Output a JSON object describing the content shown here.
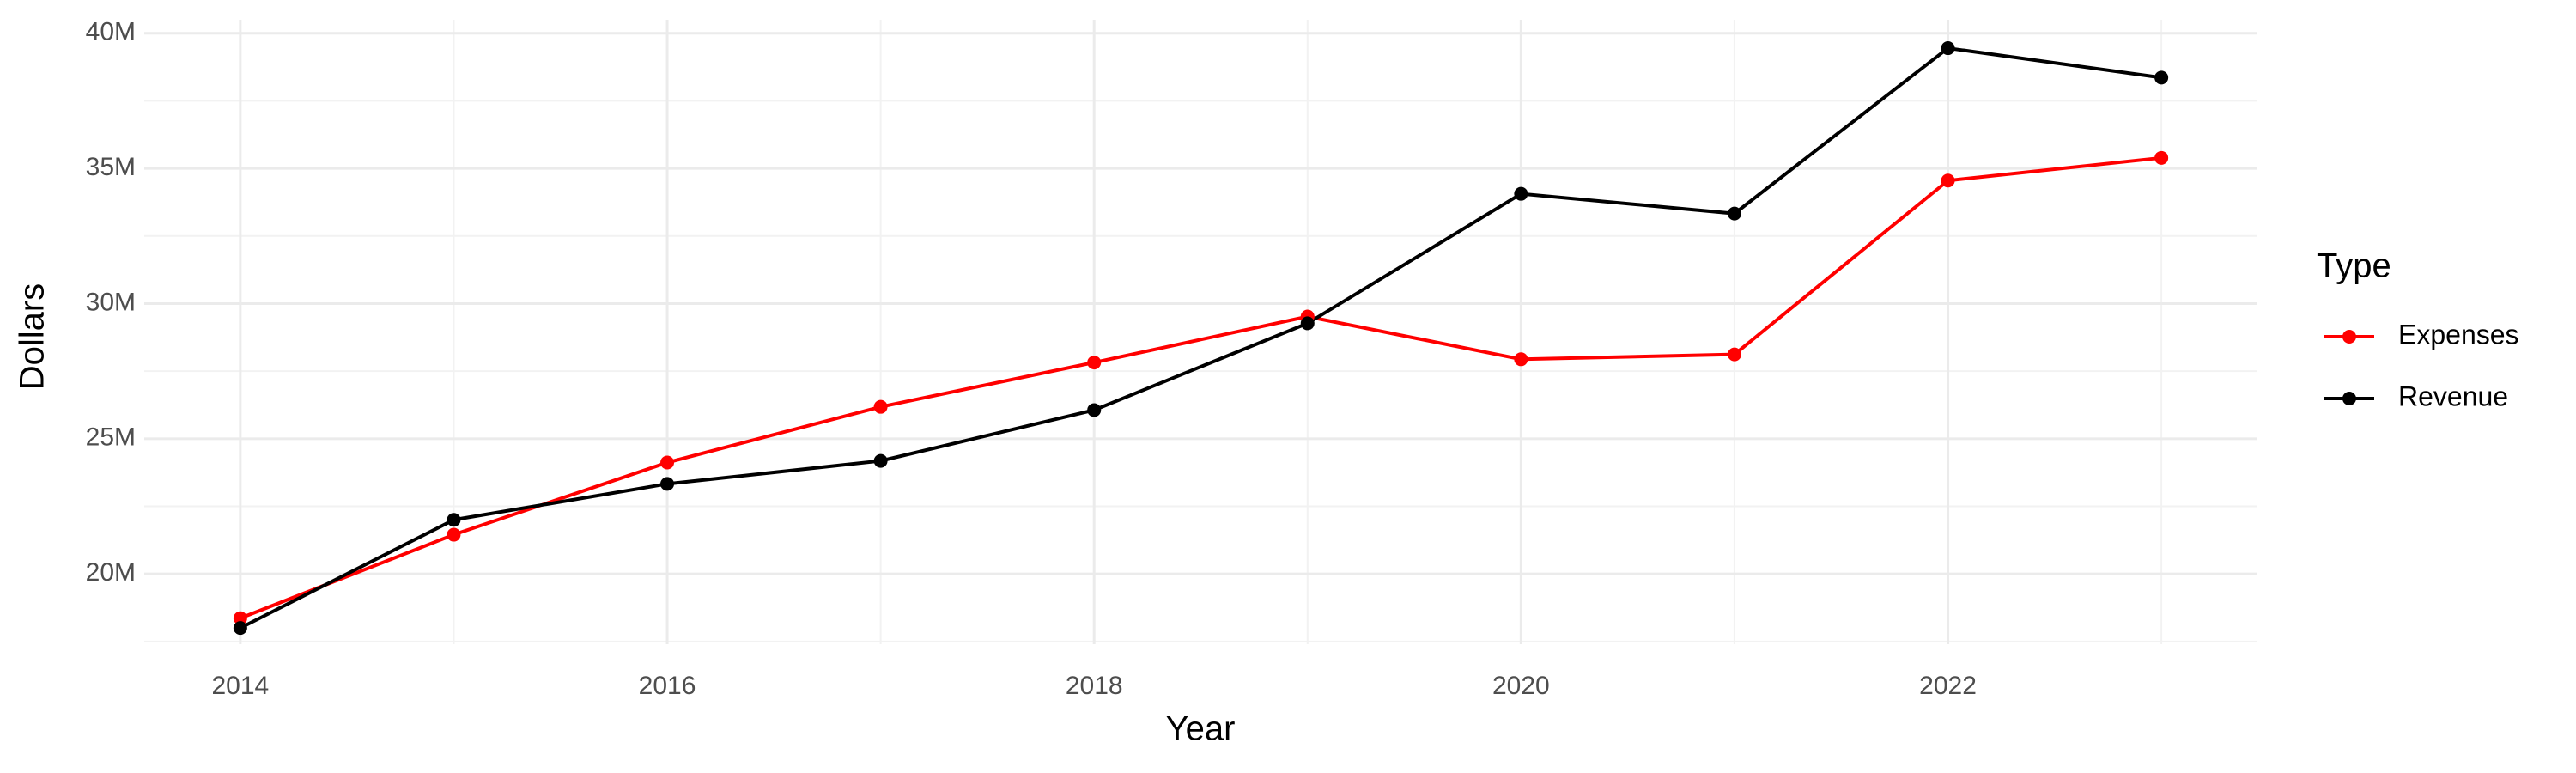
{
  "chart_data": {
    "type": "line",
    "x_label": "Year",
    "y_label": "Dollars",
    "legend_title": "Type",
    "x": [
      2014,
      2015,
      2016,
      2017,
      2018,
      2019,
      2020,
      2021,
      2022,
      2023
    ],
    "series": [
      {
        "name": "Expenses",
        "color": "#ff0000",
        "values": [
          18360000,
          21450000,
          24120000,
          26180000,
          27820000,
          29520000,
          27940000,
          28120000,
          34550000,
          35390000
        ]
      },
      {
        "name": "Revenue",
        "color": "#000000",
        "values": [
          18000000,
          22000000,
          23330000,
          24180000,
          26060000,
          29270000,
          34060000,
          33330000,
          39450000,
          38360000
        ]
      }
    ],
    "xlim": [
      2013.55,
      2023.45
    ],
    "xticks": [
      2014,
      2016,
      2018,
      2020,
      2022
    ],
    "ylim": [
      17400000,
      40500000
    ],
    "yticks": [
      {
        "value": 20000000,
        "label": "20M"
      },
      {
        "value": 25000000,
        "label": "25M"
      },
      {
        "value": 30000000,
        "label": "30M"
      },
      {
        "value": 35000000,
        "label": "35M"
      },
      {
        "value": 40000000,
        "label": "40M"
      }
    ],
    "grid": true,
    "legend_position": "right"
  }
}
